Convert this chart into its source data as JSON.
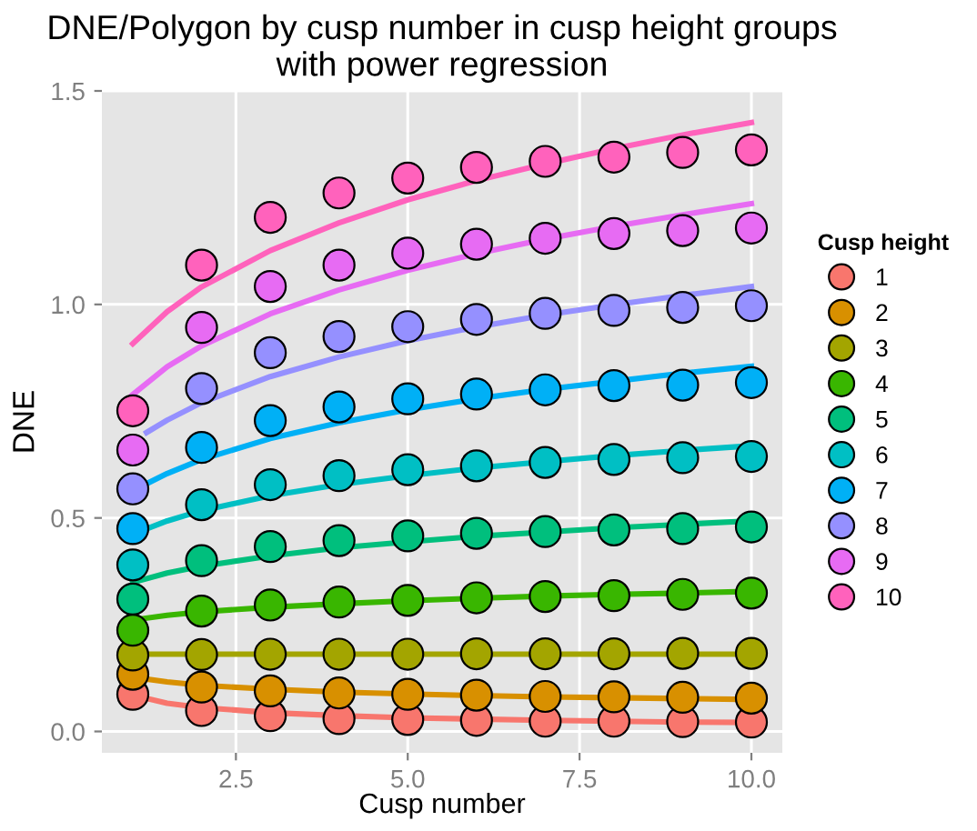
{
  "chart_data": {
    "type": "scatter",
    "title": "DNE/Polygon by cusp number in cusp height groups\nwith power regression",
    "xlabel": "Cusp number",
    "ylabel": "DNE",
    "legend_title": "Cusp height",
    "legend": "right",
    "grid": true,
    "marker": "circle",
    "xlim": [
      0.55,
      10.45
    ],
    "ylim": [
      -0.05,
      1.5
    ],
    "xticks": [
      {
        "value": 2.5,
        "label": "2.5"
      },
      {
        "value": 5,
        "label": "5.0"
      },
      {
        "value": 7.5,
        "label": "7.5"
      },
      {
        "value": 10,
        "label": "10.0"
      }
    ],
    "yticks": [
      {
        "value": 0,
        "label": "0.0"
      },
      {
        "value": 0.5,
        "label": "0.5"
      },
      {
        "value": 1,
        "label": "1.0"
      },
      {
        "value": 1.5,
        "label": "1.5"
      }
    ],
    "x": [
      1,
      2,
      3,
      4,
      5,
      6,
      7,
      8,
      9,
      10
    ],
    "series": [
      {
        "type": "line",
        "marker": "none",
        "color": "#f8766d",
        "x": [
          1,
          1.5,
          2,
          3,
          4,
          5,
          6,
          7,
          8,
          9,
          10
        ],
        "values": [
          0.085,
          0.066,
          0.056,
          0.044,
          0.037,
          0.032,
          0.029,
          0.026,
          0.024,
          0.022,
          0.021
        ]
      },
      {
        "type": "line",
        "marker": "none",
        "color": "#d89000",
        "x": [
          1,
          1.5,
          2,
          3,
          4,
          5,
          6,
          7,
          8,
          9,
          10
        ],
        "values": [
          0.127,
          0.116,
          0.108,
          0.099,
          0.092,
          0.088,
          0.084,
          0.081,
          0.079,
          0.077,
          0.075
        ]
      },
      {
        "type": "line",
        "marker": "none",
        "color": "#a3a500",
        "x": [
          1,
          1.5,
          2,
          3,
          4,
          5,
          6,
          7,
          8,
          9,
          10
        ],
        "values": [
          0.181,
          0.181,
          0.181,
          0.181,
          0.181,
          0.181,
          0.181,
          0.181,
          0.181,
          0.181,
          0.181
        ]
      },
      {
        "type": "line",
        "marker": "none",
        "color": "#39b600",
        "x": [
          1,
          1.5,
          2,
          3,
          4,
          5,
          6,
          7,
          8,
          9,
          10
        ],
        "values": [
          0.261,
          0.272,
          0.28,
          0.291,
          0.299,
          0.306,
          0.312,
          0.317,
          0.321,
          0.324,
          0.328
        ]
      },
      {
        "type": "line",
        "marker": "none",
        "color": "#00bf7d",
        "x": [
          1,
          1.5,
          2,
          3,
          4,
          5,
          6,
          7,
          8,
          9,
          10
        ],
        "values": [
          0.349,
          0.371,
          0.387,
          0.411,
          0.43,
          0.444,
          0.457,
          0.467,
          0.477,
          0.485,
          0.493
        ]
      },
      {
        "type": "line",
        "marker": "none",
        "color": "#00bfc4",
        "x": [
          1,
          1.5,
          2,
          3,
          4,
          5,
          6,
          7,
          8,
          9,
          10
        ],
        "values": [
          0.462,
          0.493,
          0.517,
          0.552,
          0.578,
          0.599,
          0.617,
          0.632,
          0.646,
          0.658,
          0.669
        ]
      },
      {
        "type": "line",
        "marker": "none",
        "color": "#00b0f6",
        "x": [
          1.2,
          1.5,
          2,
          3,
          4,
          5,
          6,
          7,
          8,
          9,
          10
        ],
        "values": [
          0.58,
          0.604,
          0.637,
          0.686,
          0.723,
          0.753,
          0.779,
          0.801,
          0.82,
          0.839,
          0.855
        ]
      },
      {
        "type": "line",
        "marker": "none",
        "color": "#9590ff",
        "x": [
          1.2,
          1.5,
          2,
          3,
          4,
          5,
          6,
          7,
          8,
          9,
          10
        ],
        "values": [
          0.7,
          0.729,
          0.77,
          0.831,
          0.877,
          0.915,
          0.947,
          0.975,
          0.999,
          1.021,
          1.042
        ]
      },
      {
        "type": "line",
        "marker": "none",
        "color": "#e76bf3",
        "x": [
          1,
          1.5,
          2,
          3,
          4,
          5,
          6,
          7,
          8,
          9,
          10
        ],
        "values": [
          0.789,
          0.854,
          0.903,
          0.978,
          1.034,
          1.08,
          1.119,
          1.153,
          1.183,
          1.21,
          1.236
        ]
      },
      {
        "type": "line",
        "marker": "none",
        "color": "#ff62bc",
        "x": [
          1,
          1.5,
          2,
          3,
          4,
          5,
          6,
          7,
          8,
          9,
          10
        ],
        "values": [
          0.908,
          0.983,
          1.041,
          1.126,
          1.191,
          1.245,
          1.29,
          1.329,
          1.365,
          1.397,
          1.426
        ]
      },
      {
        "name": "1",
        "color": "#f8766d",
        "values": [
          0.087,
          0.049,
          0.037,
          0.03,
          0.028,
          0.026,
          0.024,
          0.024,
          0.023,
          0.022
        ]
      },
      {
        "name": "2",
        "color": "#d89000",
        "values": [
          0.134,
          0.104,
          0.095,
          0.09,
          0.087,
          0.085,
          0.082,
          0.081,
          0.08,
          0.078
        ]
      },
      {
        "name": "3",
        "color": "#a3a500",
        "values": [
          0.179,
          0.18,
          0.181,
          0.181,
          0.181,
          0.182,
          0.182,
          0.182,
          0.183,
          0.183
        ]
      },
      {
        "name": "4",
        "color": "#39b600",
        "values": [
          0.237,
          0.282,
          0.296,
          0.303,
          0.307,
          0.313,
          0.316,
          0.318,
          0.321,
          0.324
        ]
      },
      {
        "name": "5",
        "color": "#00bf7d",
        "values": [
          0.31,
          0.4,
          0.433,
          0.447,
          0.458,
          0.464,
          0.468,
          0.472,
          0.475,
          0.479
        ]
      },
      {
        "name": "6",
        "color": "#00bfc4",
        "values": [
          0.39,
          0.531,
          0.578,
          0.599,
          0.613,
          0.622,
          0.63,
          0.637,
          0.641,
          0.644
        ]
      },
      {
        "name": "7",
        "color": "#00b0f6",
        "values": [
          0.475,
          0.665,
          0.728,
          0.76,
          0.779,
          0.79,
          0.8,
          0.81,
          0.811,
          0.817
        ]
      },
      {
        "name": "8",
        "color": "#9590ff",
        "values": [
          0.568,
          0.803,
          0.887,
          0.925,
          0.948,
          0.965,
          0.979,
          0.986,
          0.993,
          0.997
        ]
      },
      {
        "name": "9",
        "color": "#e76bf3",
        "values": [
          0.659,
          0.946,
          1.042,
          1.092,
          1.12,
          1.141,
          1.155,
          1.166,
          1.173,
          1.179
        ]
      },
      {
        "name": "10",
        "color": "#ff62bc",
        "values": [
          0.751,
          1.092,
          1.204,
          1.261,
          1.296,
          1.321,
          1.335,
          1.345,
          1.356,
          1.362
        ]
      }
    ]
  }
}
